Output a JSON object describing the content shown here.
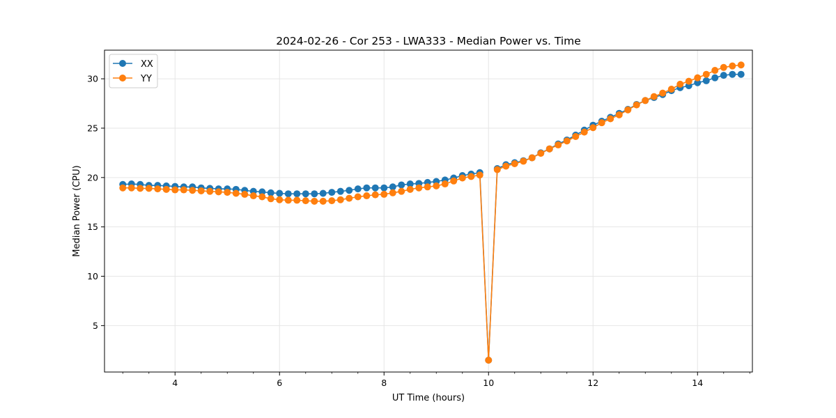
{
  "chart_data": {
    "type": "line",
    "title": "2024-02-26 - Cor 253 - LWA333 - Median Power vs. Time",
    "xlabel": "UT Time (hours)",
    "ylabel": "Median Power (CPU)",
    "xlim": [
      2.65,
      15.05
    ],
    "ylim": [
      0.3,
      32.9
    ],
    "xticks": [
      4,
      6,
      8,
      10,
      12,
      14
    ],
    "yticks": [
      5,
      10,
      15,
      20,
      25,
      30
    ],
    "grid": true,
    "legend_position": "top-left",
    "x": [
      3.0,
      3.167,
      3.333,
      3.5,
      3.667,
      3.833,
      4.0,
      4.167,
      4.333,
      4.5,
      4.667,
      4.833,
      5.0,
      5.167,
      5.333,
      5.5,
      5.667,
      5.833,
      6.0,
      6.167,
      6.333,
      6.5,
      6.667,
      6.833,
      7.0,
      7.167,
      7.333,
      7.5,
      7.667,
      7.833,
      8.0,
      8.167,
      8.333,
      8.5,
      8.667,
      8.833,
      9.0,
      9.167,
      9.333,
      9.5,
      9.667,
      9.833,
      10.0,
      10.167,
      10.333,
      10.5,
      10.667,
      10.833,
      11.0,
      11.167,
      11.333,
      11.5,
      11.667,
      11.833,
      12.0,
      12.167,
      12.333,
      12.5,
      12.667,
      12.833,
      13.0,
      13.167,
      13.333,
      13.5,
      13.667,
      13.833,
      14.0,
      14.167,
      14.333,
      14.5,
      14.667,
      14.833
    ],
    "series": [
      {
        "name": "XX",
        "color": "#1f77b4",
        "values": [
          19.3,
          19.35,
          19.3,
          19.2,
          19.2,
          19.15,
          19.1,
          19.05,
          19.05,
          18.95,
          18.9,
          18.85,
          18.85,
          18.8,
          18.7,
          18.6,
          18.55,
          18.45,
          18.4,
          18.35,
          18.35,
          18.35,
          18.35,
          18.4,
          18.5,
          18.6,
          18.7,
          18.85,
          18.95,
          18.95,
          18.95,
          19.05,
          19.25,
          19.35,
          19.4,
          19.5,
          19.6,
          19.75,
          19.95,
          20.2,
          20.35,
          20.5,
          1.5,
          20.9,
          21.3,
          21.5,
          21.7,
          22.0,
          22.5,
          22.9,
          23.4,
          23.8,
          24.3,
          24.8,
          25.3,
          25.7,
          26.1,
          26.5,
          26.9,
          27.4,
          27.8,
          28.1,
          28.4,
          28.8,
          29.1,
          29.3,
          29.6,
          29.8,
          30.1,
          30.35,
          30.45,
          30.45
        ]
      },
      {
        "name": "YY",
        "color": "#ff7f0e",
        "values": [
          18.95,
          18.95,
          18.9,
          18.9,
          18.85,
          18.8,
          18.75,
          18.75,
          18.7,
          18.65,
          18.6,
          18.55,
          18.5,
          18.4,
          18.3,
          18.15,
          18.05,
          17.85,
          17.75,
          17.7,
          17.7,
          17.65,
          17.6,
          17.6,
          17.65,
          17.75,
          17.9,
          18.05,
          18.15,
          18.25,
          18.3,
          18.45,
          18.6,
          18.8,
          18.95,
          19.05,
          19.15,
          19.35,
          19.65,
          19.95,
          20.1,
          20.25,
          1.5,
          20.8,
          21.15,
          21.4,
          21.65,
          22.0,
          22.45,
          22.9,
          23.3,
          23.7,
          24.15,
          24.6,
          25.05,
          25.55,
          25.95,
          26.35,
          26.85,
          27.35,
          27.8,
          28.2,
          28.55,
          28.95,
          29.45,
          29.75,
          30.1,
          30.45,
          30.85,
          31.15,
          31.3,
          31.4
        ]
      }
    ]
  }
}
